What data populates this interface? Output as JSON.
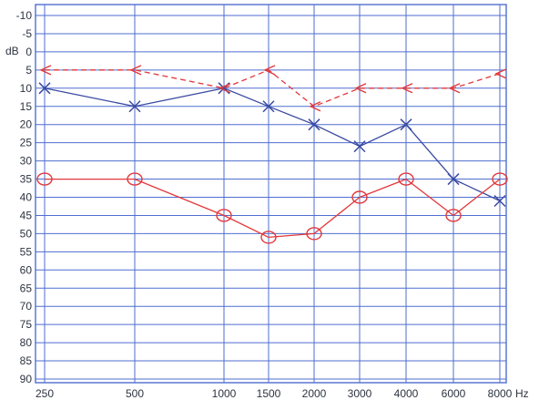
{
  "chart_data": {
    "type": "line",
    "title": "",
    "xlabel": "Hz",
    "ylabel": "dB",
    "x_ticks": [
      "250",
      "500",
      "1000",
      "1500",
      "2000",
      "3000",
      "4000",
      "6000",
      "8000"
    ],
    "y_ticks": [
      -10,
      -5,
      0,
      5,
      10,
      15,
      20,
      25,
      30,
      35,
      40,
      45,
      50,
      55,
      60,
      65,
      70,
      75,
      80,
      85,
      90
    ],
    "ylim": [
      -10,
      90
    ],
    "y_inverted": true,
    "grid": true,
    "series": [
      {
        "marker": "x",
        "line_style": "solid",
        "color": "#3a4aa0",
        "values": [
          10,
          15,
          10,
          15,
          20,
          26,
          20,
          35,
          41
        ]
      },
      {
        "marker": "circle",
        "line_style": "solid",
        "color": "#e3383b",
        "values": [
          35,
          35,
          45,
          51,
          50,
          40,
          35,
          45,
          35
        ]
      },
      {
        "marker": "lt",
        "line_style": "dashed",
        "color": "#e3383b",
        "values": [
          5,
          5,
          10,
          5,
          15,
          10,
          10,
          10,
          6
        ]
      }
    ]
  },
  "colors": {
    "grid": "#4f6ed0",
    "frame": "#4f6ed0",
    "text": "#2d3340"
  }
}
